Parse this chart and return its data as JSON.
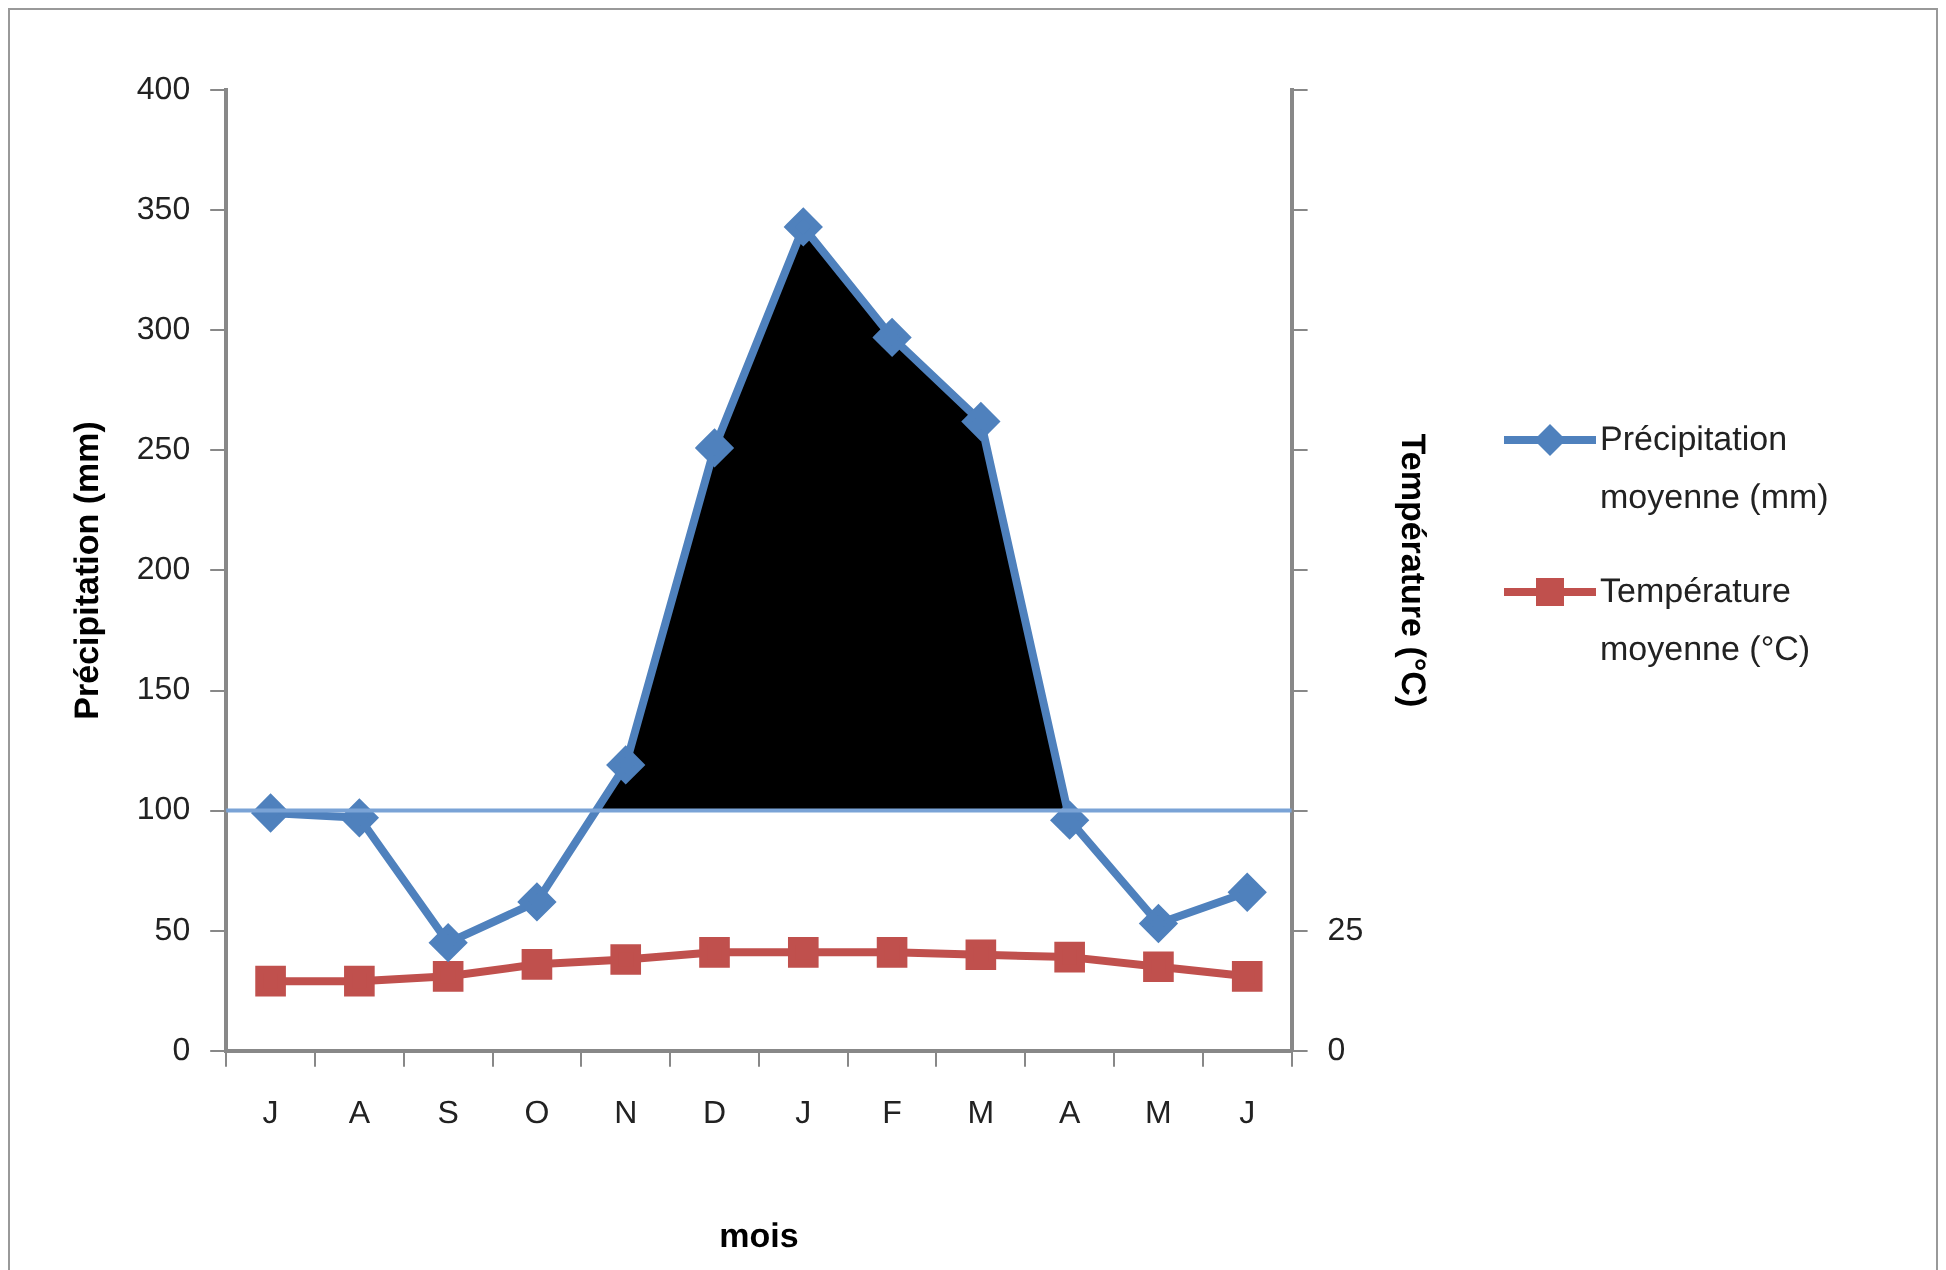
{
  "chart_data": {
    "type": "line",
    "xlabel": "mois",
    "ylabel": "Précipitation (mm)",
    "y2label": "Température (°C)",
    "categories": [
      "J",
      "A",
      "S",
      "O",
      "N",
      "D",
      "J",
      "F",
      "M",
      "A",
      "M",
      "J"
    ],
    "series": [
      {
        "name": "Précipitation moyenne (mm)",
        "color": "#4f81bd",
        "marker": "diamond",
        "values": [
          99,
          97,
          45,
          62,
          119,
          251,
          343,
          297,
          262,
          96,
          53,
          66
        ]
      },
      {
        "name": "Température moyenne (°C)",
        "color": "#c0504d",
        "marker": "square",
        "axis": "y2",
        "values": [
          14.5,
          14.5,
          15.5,
          18,
          19,
          20.5,
          20.5,
          20.5,
          20,
          19.5,
          17.5,
          15.5
        ]
      }
    ],
    "ylim": [
      0,
      400
    ],
    "yticks": [
      0,
      50,
      100,
      150,
      200,
      250,
      300,
      350,
      400
    ],
    "y2lim": [
      0,
      200
    ],
    "y2ticks": [
      0,
      25,
      {
        "value": 50,
        "label": null
      },
      {
        "value": 75,
        "label": null
      },
      {
        "value": 100,
        "label": null
      },
      {
        "value": 125,
        "label": null
      },
      {
        "value": 150,
        "label": null
      },
      {
        "value": 175,
        "label": null
      },
      {
        "value": 200,
        "label": null
      }
    ],
    "ref_lines": [
      {
        "axis": "y",
        "value": 100,
        "color": "#7aa3d6"
      }
    ],
    "bands": [
      {
        "axis": "y",
        "from": 100,
        "to": 400,
        "color": "#000000"
      }
    ],
    "legend": "right",
    "grid": false
  }
}
